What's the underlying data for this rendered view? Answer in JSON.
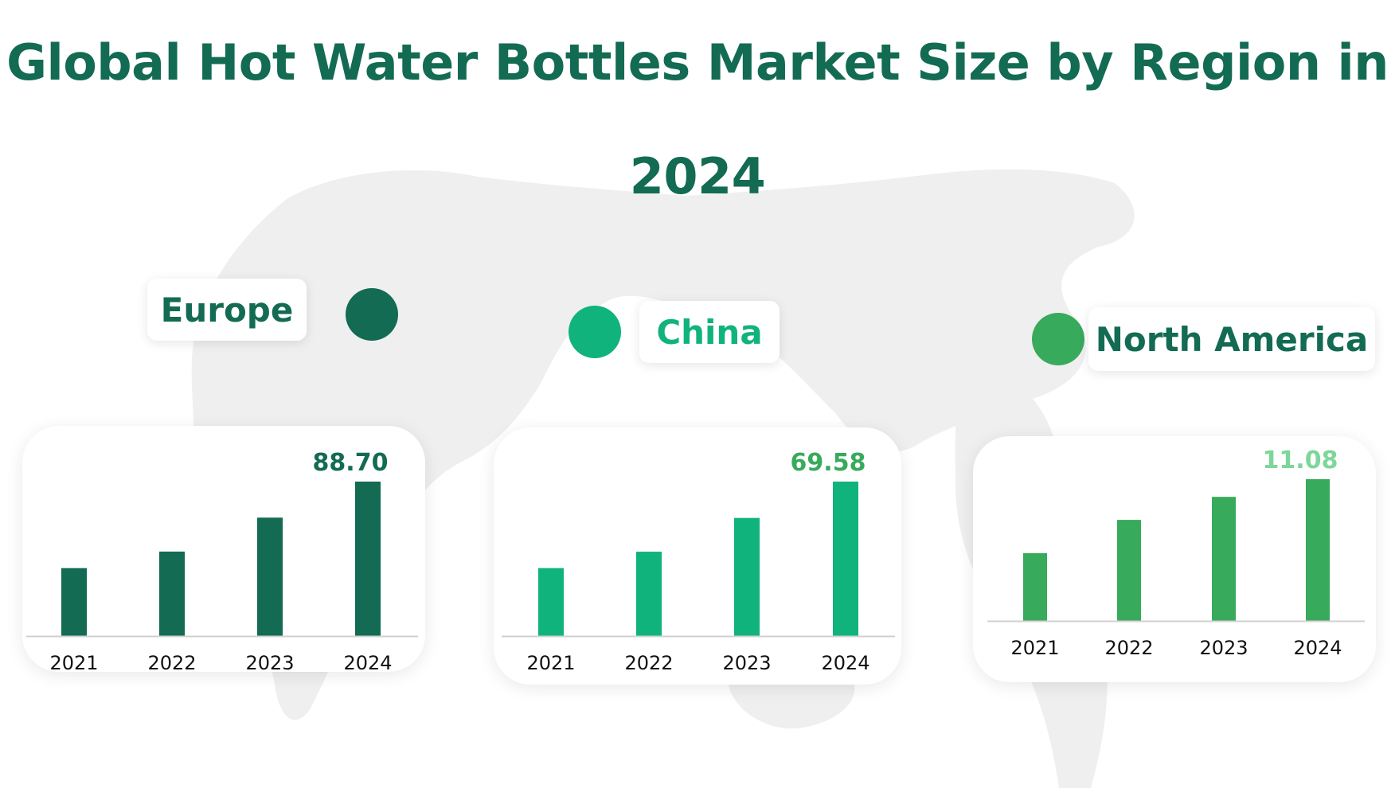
{
  "title": "Global Hot Water Bottles Market Size by Region in 2024",
  "title_lines": [
    "Global Hot Water Bottles Market Size by Region in",
    "2024"
  ],
  "colors": {
    "title": "#126b52",
    "europe": "#126b52",
    "china": "#10b37c",
    "north_america": "#38aa5c",
    "north_america_value_label": "#7dd69a",
    "axis": "#d0d0d0",
    "map": "#ececec"
  },
  "regions": [
    {
      "label": "Europe",
      "dot_color": "#126b52",
      "label_color": "#126b52"
    },
    {
      "label": "China",
      "dot_color": "#10b37c",
      "label_color": "#10b37c"
    },
    {
      "label": "North America",
      "dot_color": "#38aa5c",
      "label_color": "#126b52"
    }
  ],
  "chart_data": [
    {
      "type": "bar",
      "region": "Europe",
      "categories": [
        "2021",
        "2022",
        "2023",
        "2024"
      ],
      "values": [
        39.0,
        48.5,
        68.0,
        88.7
      ],
      "labeled_values": {
        "2024": "88.70"
      },
      "bar_color": "#126b52",
      "label_color": "#126b52",
      "ylim": [
        0,
        88.7
      ],
      "grid": false
    },
    {
      "type": "bar",
      "region": "China",
      "categories": [
        "2021",
        "2022",
        "2023",
        "2024"
      ],
      "values": [
        30.6,
        38.0,
        53.2,
        69.58
      ],
      "labeled_values": {
        "2024": "69.58"
      },
      "bar_color": "#10b37c",
      "label_color": "#38aa5c",
      "ylim": [
        0,
        69.58
      ],
      "grid": false
    },
    {
      "type": "bar",
      "region": "North America",
      "categories": [
        "2021",
        "2022",
        "2023",
        "2024"
      ],
      "values": [
        5.3,
        7.9,
        9.7,
        11.08
      ],
      "labeled_values": {
        "2024": "11.08"
      },
      "bar_color": "#38aa5c",
      "label_color": "#7dd69a",
      "ylim": [
        0,
        11.08
      ],
      "grid": false
    }
  ]
}
